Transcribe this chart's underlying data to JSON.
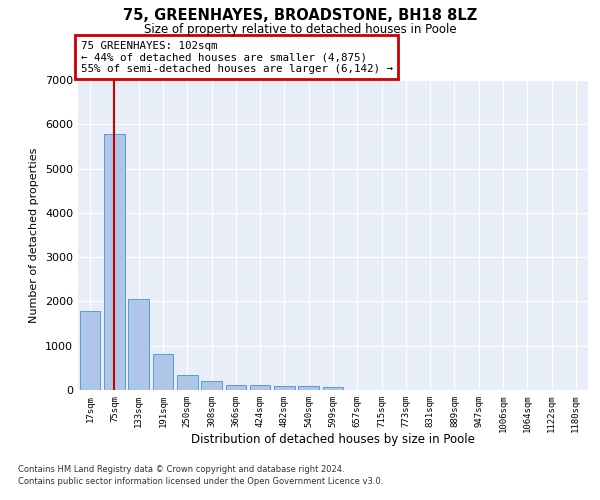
{
  "title1": "75, GREENHAYES, BROADSTONE, BH18 8LZ",
  "title2": "Size of property relative to detached houses in Poole",
  "xlabel": "Distribution of detached houses by size in Poole",
  "ylabel": "Number of detached properties",
  "categories": [
    "17sqm",
    "75sqm",
    "133sqm",
    "191sqm",
    "250sqm",
    "308sqm",
    "366sqm",
    "424sqm",
    "482sqm",
    "540sqm",
    "599sqm",
    "657sqm",
    "715sqm",
    "773sqm",
    "831sqm",
    "889sqm",
    "947sqm",
    "1006sqm",
    "1064sqm",
    "1122sqm",
    "1180sqm"
  ],
  "values": [
    1780,
    5780,
    2060,
    820,
    340,
    200,
    120,
    110,
    95,
    90,
    75,
    0,
    0,
    0,
    0,
    0,
    0,
    0,
    0,
    0,
    0
  ],
  "bar_color": "#aec6e8",
  "bar_edge_color": "#5b9bd5",
  "subject_bar_index": 1,
  "subject_line_color": "#cc0000",
  "annotation_line1": "75 GREENHAYES: 102sqm",
  "annotation_line2": "← 44% of detached houses are smaller (4,875)",
  "annotation_line3": "55% of semi-detached houses are larger (6,142) →",
  "annotation_box_color": "#ffffff",
  "annotation_box_edge_color": "#cc0000",
  "ylim": [
    0,
    7000
  ],
  "yticks": [
    0,
    1000,
    2000,
    3000,
    4000,
    5000,
    6000,
    7000
  ],
  "bg_color": "#e8eef8",
  "grid_color": "#ffffff",
  "footer1": "Contains HM Land Registry data © Crown copyright and database right 2024.",
  "footer2": "Contains public sector information licensed under the Open Government Licence v3.0."
}
